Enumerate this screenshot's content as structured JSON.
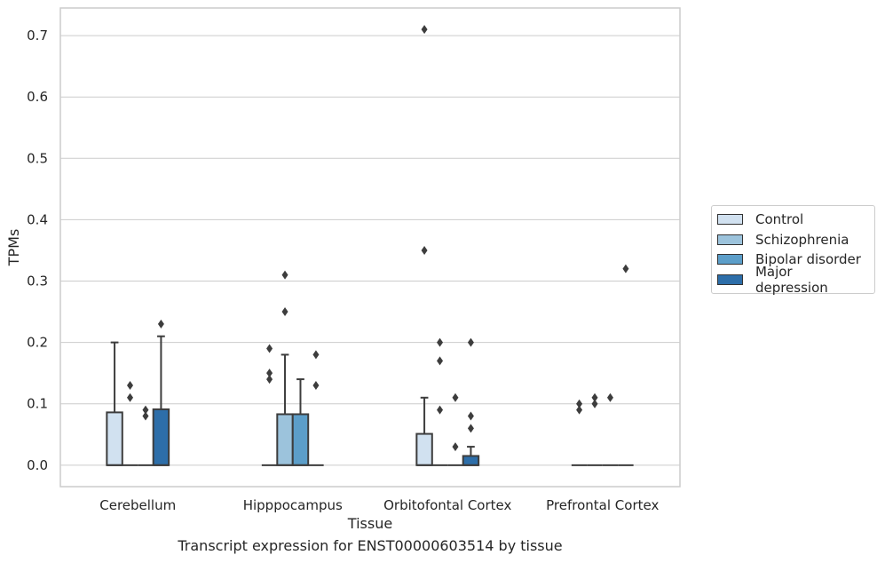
{
  "chart_data": {
    "type": "box",
    "title": "",
    "caption": "Transcript expression for ENST00000603514 by tissue",
    "xlabel": "Tissue",
    "ylabel": "TPMs",
    "ylim": [
      -0.035,
      0.745
    ],
    "yticks": [
      0.0,
      0.1,
      0.2,
      0.3,
      0.4,
      0.5,
      0.6,
      0.7
    ],
    "ytick_labels": [
      "0.0",
      "0.1",
      "0.2",
      "0.3",
      "0.4",
      "0.5",
      "0.6",
      "0.7"
    ],
    "grid": "horizontal",
    "legend_position": "right",
    "categories": [
      "Cerebellum",
      "Hipppocampus",
      "Orbitofontal Cortex",
      "Prefrontal Cortex"
    ],
    "series": [
      {
        "name": "Control",
        "color": "#d1e1f0",
        "boxes": [
          {
            "q1": 0.0,
            "median": 0.0,
            "q3": 0.086,
            "whisker_low": 0.0,
            "whisker_high": 0.2,
            "outliers": []
          },
          {
            "q1": 0.0,
            "median": 0.0,
            "q3": 0.0,
            "whisker_low": 0.0,
            "whisker_high": 0.0,
            "outliers": [
              0.19,
              0.15,
              0.14
            ]
          },
          {
            "q1": 0.0,
            "median": 0.0,
            "q3": 0.051,
            "whisker_low": 0.0,
            "whisker_high": 0.11,
            "outliers": [
              0.71,
              0.35
            ]
          },
          {
            "q1": 0.0,
            "median": 0.0,
            "q3": 0.0,
            "whisker_low": 0.0,
            "whisker_high": 0.0,
            "outliers": [
              0.1,
              0.09
            ]
          }
        ]
      },
      {
        "name": "Schizophrenia",
        "color": "#9cc3dc",
        "boxes": [
          {
            "q1": 0.0,
            "median": 0.0,
            "q3": 0.0,
            "whisker_low": 0.0,
            "whisker_high": 0.0,
            "outliers": [
              0.13,
              0.11
            ]
          },
          {
            "q1": 0.0,
            "median": 0.0,
            "q3": 0.083,
            "whisker_low": 0.0,
            "whisker_high": 0.18,
            "outliers": [
              0.31,
              0.25
            ]
          },
          {
            "q1": 0.0,
            "median": 0.0,
            "q3": 0.0,
            "whisker_low": 0.0,
            "whisker_high": 0.0,
            "outliers": [
              0.2,
              0.17,
              0.09
            ]
          },
          {
            "q1": 0.0,
            "median": 0.0,
            "q3": 0.0,
            "whisker_low": 0.0,
            "whisker_high": 0.0,
            "outliers": [
              0.11,
              0.1
            ]
          }
        ]
      },
      {
        "name": "Bipolar disorder",
        "color": "#5c9ec9",
        "boxes": [
          {
            "q1": 0.0,
            "median": 0.0,
            "q3": 0.0,
            "whisker_low": 0.0,
            "whisker_high": 0.0,
            "outliers": [
              0.09,
              0.08
            ]
          },
          {
            "q1": 0.0,
            "median": 0.0,
            "q3": 0.083,
            "whisker_low": 0.0,
            "whisker_high": 0.14,
            "outliers": []
          },
          {
            "q1": 0.0,
            "median": 0.0,
            "q3": 0.0,
            "whisker_low": 0.0,
            "whisker_high": 0.0,
            "outliers": [
              0.11,
              0.03
            ]
          },
          {
            "q1": 0.0,
            "median": 0.0,
            "q3": 0.0,
            "whisker_low": 0.0,
            "whisker_high": 0.0,
            "outliers": [
              0.11
            ]
          }
        ]
      },
      {
        "name": "Major depression",
        "color": "#2d6ea9",
        "boxes": [
          {
            "q1": 0.0,
            "median": 0.0,
            "q3": 0.091,
            "whisker_low": 0.0,
            "whisker_high": 0.21,
            "outliers": [
              0.23
            ]
          },
          {
            "q1": 0.0,
            "median": 0.0,
            "q3": 0.0,
            "whisker_low": 0.0,
            "whisker_high": 0.0,
            "outliers": [
              0.18,
              0.13
            ]
          },
          {
            "q1": 0.0,
            "median": 0.0,
            "q3": 0.015,
            "whisker_low": 0.0,
            "whisker_high": 0.03,
            "outliers": [
              0.2,
              0.08,
              0.06
            ]
          },
          {
            "q1": 0.0,
            "median": 0.0,
            "q3": 0.0,
            "whisker_low": 0.0,
            "whisker_high": 0.0,
            "outliers": [
              0.32
            ]
          }
        ]
      }
    ]
  }
}
